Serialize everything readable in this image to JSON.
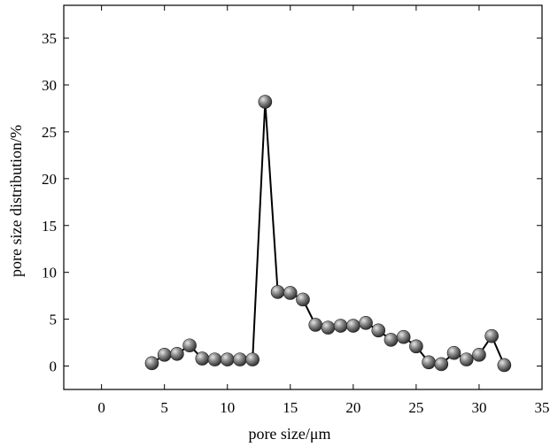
{
  "chart_data": {
    "type": "line",
    "title": "",
    "xlabel": "pore size/μm",
    "ylabel": "pore size distribution/%",
    "xlim": [
      -3,
      35
    ],
    "ylim": [
      -2.5,
      38.5
    ],
    "xticks": [
      0,
      5,
      10,
      15,
      20,
      25,
      30,
      35
    ],
    "yticks": [
      0,
      5,
      10,
      15,
      20,
      25,
      30,
      35
    ],
    "grid": false,
    "legend": "none",
    "marker": "sphere",
    "colors": {
      "line": "#000000",
      "marker_light": "#e6e6e6",
      "marker_dark": "#2e2e2e"
    },
    "series": [
      {
        "x": [
          4,
          5,
          6,
          7,
          8,
          9,
          10,
          11,
          12,
          13,
          14,
          15,
          16,
          17,
          18,
          19,
          20,
          21,
          22,
          23,
          24,
          25,
          26,
          27,
          28,
          29,
          30,
          31,
          32
        ],
        "y": [
          0.3,
          1.2,
          1.3,
          2.2,
          0.8,
          0.7,
          0.7,
          0.7,
          0.7,
          28.2,
          7.9,
          7.8,
          7.1,
          4.4,
          4.1,
          4.3,
          4.3,
          4.6,
          3.8,
          2.8,
          3.1,
          2.1,
          0.4,
          0.2,
          1.4,
          0.7,
          1.2,
          3.2,
          0.1
        ]
      }
    ]
  }
}
